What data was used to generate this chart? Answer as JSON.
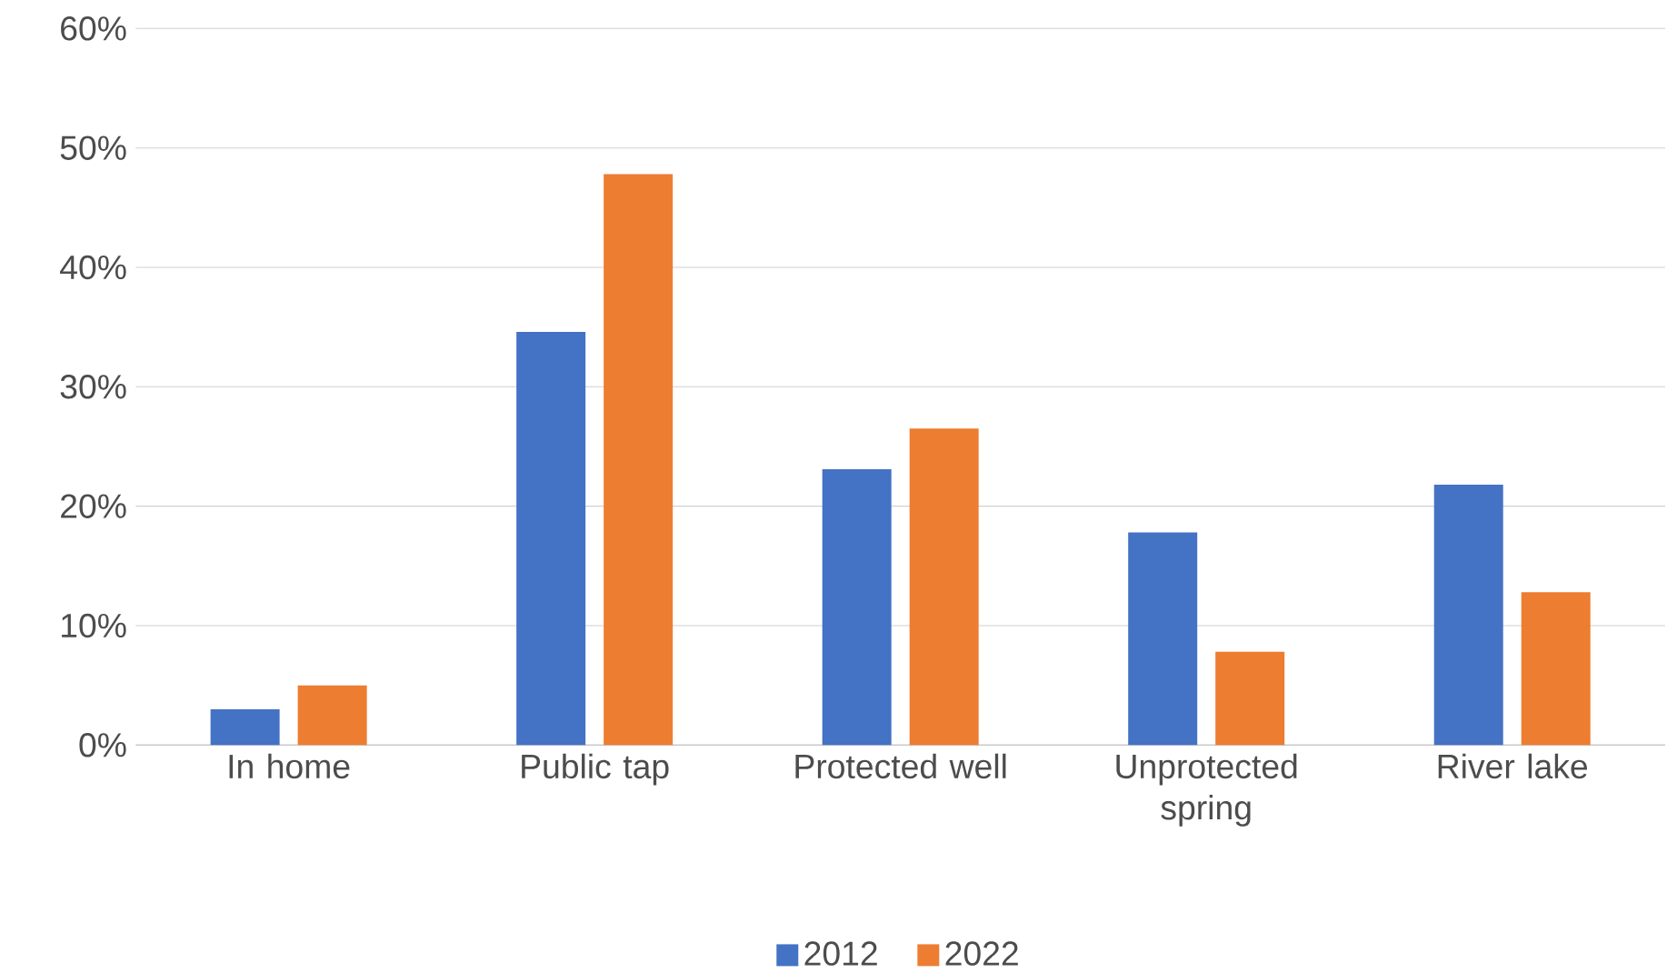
{
  "chart_data": {
    "type": "bar",
    "categories": [
      "In home",
      "Public tap",
      "Protected well",
      "Unprotected spring",
      "River lake"
    ],
    "series": [
      {
        "name": "2012",
        "color": "#4472c4",
        "values": [
          3,
          34.6,
          23.1,
          17.8,
          21.8
        ]
      },
      {
        "name": "2022",
        "color": "#ed7d31",
        "values": [
          5,
          47.8,
          26.5,
          7.8,
          12.8
        ]
      }
    ],
    "ylim": [
      0,
      60
    ],
    "yticks": [
      {
        "value": 0,
        "label": "0%"
      },
      {
        "value": 10,
        "label": "10%"
      },
      {
        "value": 20,
        "label": "20%"
      },
      {
        "value": 30,
        "label": "30%"
      },
      {
        "value": 40,
        "label": "40%"
      },
      {
        "value": 50,
        "label": "50%"
      },
      {
        "value": 60,
        "label": "60%"
      }
    ],
    "grid": "y",
    "legend": "bottom"
  }
}
